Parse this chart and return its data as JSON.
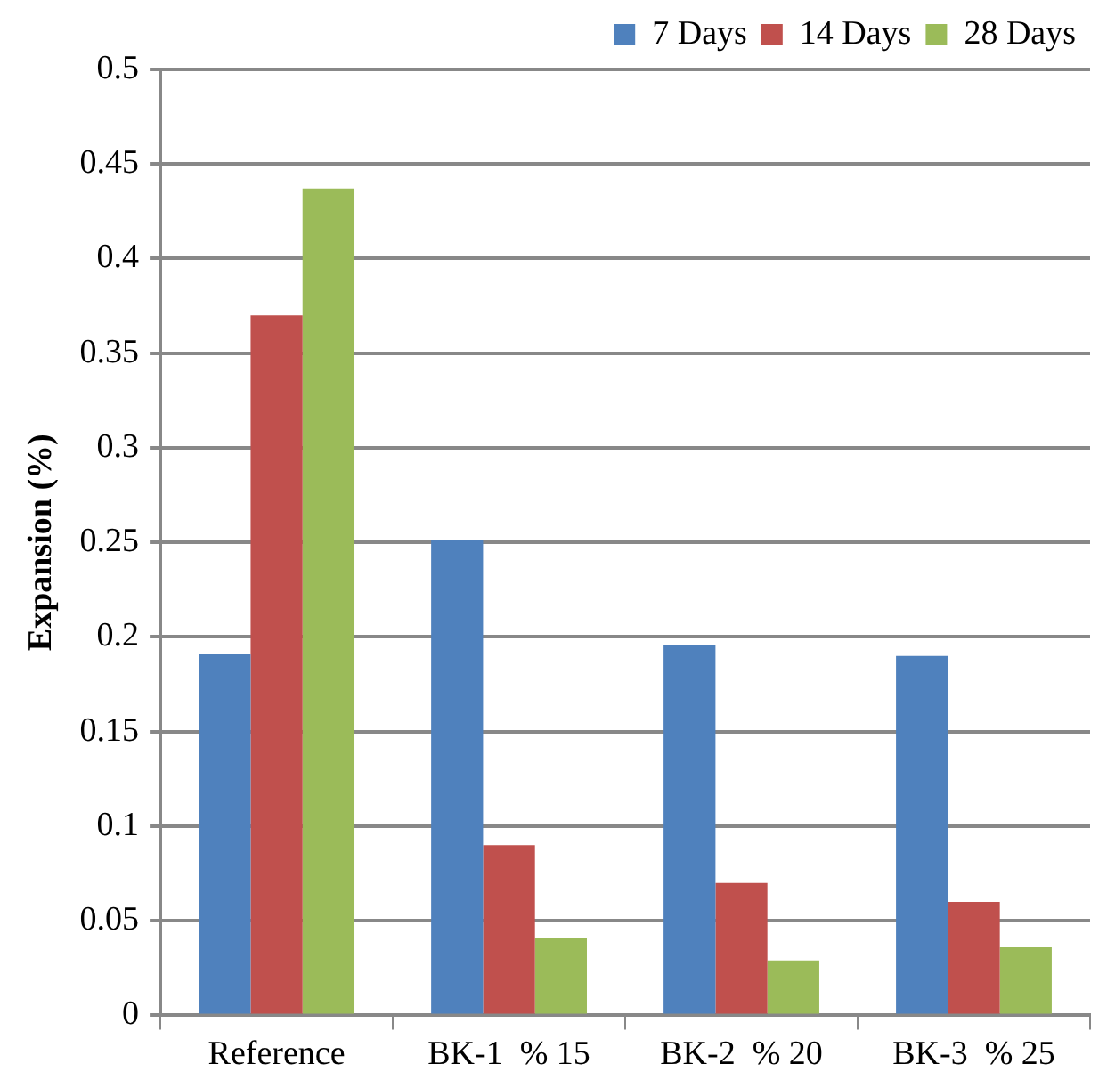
{
  "chart_data": {
    "type": "bar",
    "ylabel": "Expansion (%)",
    "categories": [
      "Reference",
      "BK-1  % 15",
      "BK-2  % 20",
      "BK-3  % 25"
    ],
    "series": [
      {
        "name": "7 Days",
        "color": "#4f81bd",
        "values": [
          0.191,
          0.251,
          0.196,
          0.19
        ]
      },
      {
        "name": "14 Days",
        "color": "#c0504d",
        "values": [
          0.37,
          0.09,
          0.07,
          0.06
        ]
      },
      {
        "name": "28 Days",
        "color": "#9bbb59",
        "values": [
          0.437,
          0.041,
          0.029,
          0.036
        ]
      }
    ],
    "ylim": [
      0,
      0.5
    ],
    "yticks": [
      0,
      0.05,
      0.1,
      0.15,
      0.2,
      0.25,
      0.3,
      0.35,
      0.4,
      0.45,
      0.5
    ],
    "grid": "y",
    "legend": "top right"
  }
}
